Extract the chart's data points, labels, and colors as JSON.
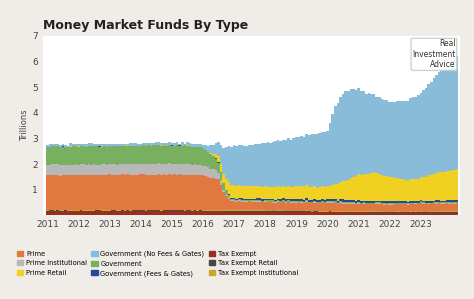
{
  "title": "Money Market Funds By Type",
  "ylabel": "Trillions",
  "ylim": [
    0,
    7
  ],
  "yticks": [
    1,
    2,
    3,
    4,
    5,
    6,
    7
  ],
  "bg_color": "#f0ede8",
  "xlim": [
    2010.85,
    2024.25
  ],
  "xtick_years": [
    2011,
    2012,
    2013,
    2014,
    2015,
    2016,
    2017,
    2018,
    2019,
    2020,
    2021,
    2022,
    2023
  ],
  "colors": {
    "Prime": "#e07840",
    "Prime Institutional": "#b8b8b8",
    "Prime Retail": "#f0d020",
    "Government (No Fees & Gates)": "#88bcd8",
    "Government": "#78b060",
    "Government (Fees & Gates)": "#284898",
    "Tax Exempt": "#983020",
    "Tax Exempt Retail": "#484848",
    "Tax Exempt Institutional": "#c8a828"
  },
  "legend_items": [
    [
      "Prime",
      "#e07840"
    ],
    [
      "Prime Institutional",
      "#b8b8b8"
    ],
    [
      "Prime Retail",
      "#f0d020"
    ],
    [
      "Government (No Fees & Gates)",
      "#88bcd8"
    ],
    [
      "Government",
      "#78b060"
    ],
    [
      "Government (Fees & Gates)",
      "#284898"
    ],
    [
      "Tax Exempt",
      "#983020"
    ],
    [
      "Tax Exempt Retail",
      "#484848"
    ],
    [
      "Tax Exempt Institutional",
      "#c8a828"
    ]
  ],
  "watermark": "Real\nInvestment\nAdvice"
}
